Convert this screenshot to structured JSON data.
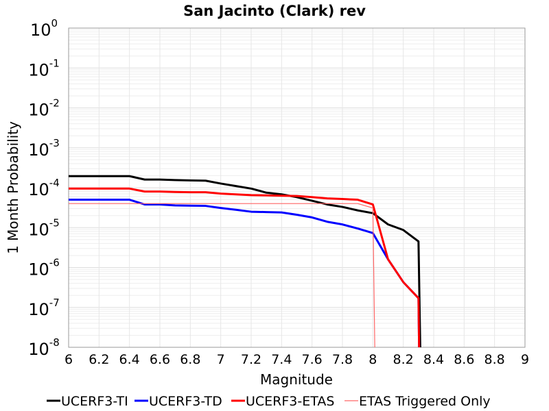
{
  "chart_data": {
    "type": "line",
    "title": "San Jacinto (Clark) rev",
    "xlabel": "Magnitude",
    "ylabel": "1 Month Probability",
    "xlim": [
      6,
      9
    ],
    "ylim": [
      1e-08,
      1
    ],
    "yscale": "log",
    "grid": true,
    "legend_position": "bottom",
    "xticks": [
      "6",
      "6.2",
      "6.4",
      "6.6",
      "6.8",
      "7",
      "7.2",
      "7.4",
      "7.6",
      "7.8",
      "8",
      "8.2",
      "8.4",
      "8.6",
      "8.8",
      "9"
    ],
    "yticks": [
      {
        "base": "10",
        "exp": "0"
      },
      {
        "base": "10",
        "exp": "-1"
      },
      {
        "base": "10",
        "exp": "-2"
      },
      {
        "base": "10",
        "exp": "-3"
      },
      {
        "base": "10",
        "exp": "-4"
      },
      {
        "base": "10",
        "exp": "-5"
      },
      {
        "base": "10",
        "exp": "-6"
      },
      {
        "base": "10",
        "exp": "-7"
      },
      {
        "base": "10",
        "exp": "-8"
      }
    ],
    "series": [
      {
        "name": "UCERF3-TI",
        "color": "#000000",
        "width": 3,
        "x": [
          6,
          6.1,
          6.2,
          6.3,
          6.4,
          6.5,
          6.6,
          6.7,
          6.8,
          6.9,
          7,
          7.1,
          7.2,
          7.3,
          7.4,
          7.5,
          7.6,
          7.7,
          7.8,
          7.9,
          8,
          8.1,
          8.2,
          8.3,
          8.32
        ],
        "y": [
          0.000195,
          0.000195,
          0.000195,
          0.000195,
          0.000195,
          0.00016,
          0.00016,
          0.000155,
          0.000152,
          0.00015,
          0.000127,
          0.00011,
          9.5e-05,
          7.5e-05,
          6.8e-05,
          5.8e-05,
          4.7e-05,
          3.8e-05,
          3.3e-05,
          2.7e-05,
          2.3e-05,
          1.2e-05,
          8.7e-06,
          4.5e-06,
          1e-10
        ]
      },
      {
        "name": "UCERF3-TD",
        "color": "#0000ff",
        "width": 3,
        "x": [
          6,
          6.1,
          6.2,
          6.3,
          6.4,
          6.5,
          6.6,
          6.7,
          6.8,
          6.9,
          7,
          7.1,
          7.2,
          7.3,
          7.4,
          7.5,
          7.6,
          7.7,
          7.8,
          7.9,
          8,
          8.1,
          8.2,
          8.3,
          8.31
        ],
        "y": [
          5e-05,
          5e-05,
          5e-05,
          5e-05,
          5e-05,
          3.8e-05,
          3.8e-05,
          3.6e-05,
          3.55e-05,
          3.5e-05,
          3.1e-05,
          2.8e-05,
          2.5e-05,
          2.45e-05,
          2.4e-05,
          2.1e-05,
          1.8e-05,
          1.4e-05,
          1.2e-05,
          9.5e-06,
          7.3e-06,
          1.6e-06,
          4.3e-07,
          1.7e-07,
          1e-10
        ]
      },
      {
        "name": "UCERF3-ETAS",
        "color": "#ff0000",
        "width": 3,
        "x": [
          6,
          6.1,
          6.2,
          6.3,
          6.4,
          6.5,
          6.6,
          6.7,
          6.8,
          6.9,
          7,
          7.1,
          7.2,
          7.3,
          7.4,
          7.5,
          7.6,
          7.7,
          7.8,
          7.9,
          8,
          8.1,
          8.2,
          8.3,
          8.31
        ],
        "y": [
          9.5e-05,
          9.5e-05,
          9.5e-05,
          9.5e-05,
          9.5e-05,
          8e-05,
          8e-05,
          7.8e-05,
          7.7e-05,
          7.7e-05,
          7.1e-05,
          6.8e-05,
          6.5e-05,
          6.4e-05,
          6.3e-05,
          6.2e-05,
          5.8e-05,
          5.4e-05,
          5.2e-05,
          5e-05,
          3.8e-05,
          1.6e-06,
          4.3e-07,
          1.7e-07,
          1e-10
        ]
      },
      {
        "name": "ETAS Triggered Only",
        "color": "#ff6666",
        "width": 1.2,
        "x": [
          6,
          6.5,
          7,
          7.5,
          7.9,
          8,
          8.02
        ],
        "y": [
          4e-05,
          4e-05,
          4e-05,
          4e-05,
          4e-05,
          3.1e-05,
          1e-10
        ]
      }
    ]
  }
}
